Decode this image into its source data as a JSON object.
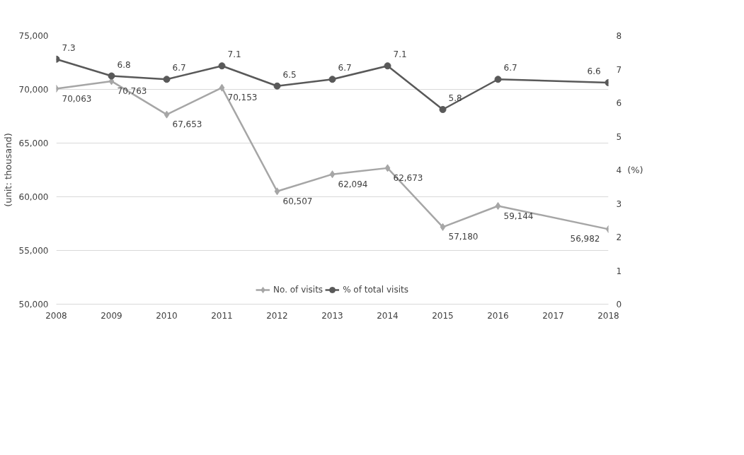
{
  "chart_data": {
    "type": "line",
    "ylabel": "(unit: thousand)",
    "y2label": "(%)",
    "xlim": [
      2008,
      2018
    ],
    "xticks": [
      2008,
      2009,
      2010,
      2011,
      2012,
      2013,
      2014,
      2015,
      2016,
      2017,
      2018
    ],
    "ylim": [
      50000,
      75000
    ],
    "yticks": [
      {
        "value": 50000,
        "label": "50,000"
      },
      {
        "value": 55000,
        "label": "55,000"
      },
      {
        "value": 60000,
        "label": "60,000"
      },
      {
        "value": 65000,
        "label": "65,000"
      },
      {
        "value": 70000,
        "label": "70,000"
      },
      {
        "value": 75000,
        "label": "75,000"
      }
    ],
    "y2lim": [
      0,
      8
    ],
    "y2ticks": [
      0,
      1,
      2,
      3,
      4,
      5,
      6,
      7,
      8
    ],
    "grid": "y",
    "legend": "bottom",
    "series": [
      {
        "name": "No. of visits",
        "color": "#a6a6a6",
        "marker": "diamond",
        "x": [
          2008,
          2009,
          2010,
          2011,
          2012,
          2013,
          2014,
          2015,
          2016,
          2018
        ],
        "values": [
          70063,
          70763,
          67653,
          70153,
          60507,
          62094,
          62673,
          57180,
          59144,
          56982
        ],
        "value_labels": [
          "70,063",
          "70,763",
          "67,653",
          "70,153",
          "60,507",
          "62,094",
          "62,673",
          "57,180",
          "59,144",
          "56,982"
        ]
      },
      {
        "name": "% of total visits",
        "color": "#595959",
        "marker": "circle",
        "axis": "y2",
        "x": [
          2008,
          2009,
          2010,
          2011,
          2012,
          2013,
          2014,
          2015,
          2016,
          2018
        ],
        "values": [
          7.3,
          6.8,
          6.7,
          7.1,
          6.5,
          6.7,
          7.1,
          5.8,
          6.7,
          6.6
        ],
        "value_labels": [
          "7.3",
          "6.8",
          "6.7",
          "7.1",
          "6.5",
          "6.7",
          "7.1",
          "5.8",
          "6.7",
          "6.6"
        ]
      }
    ]
  }
}
